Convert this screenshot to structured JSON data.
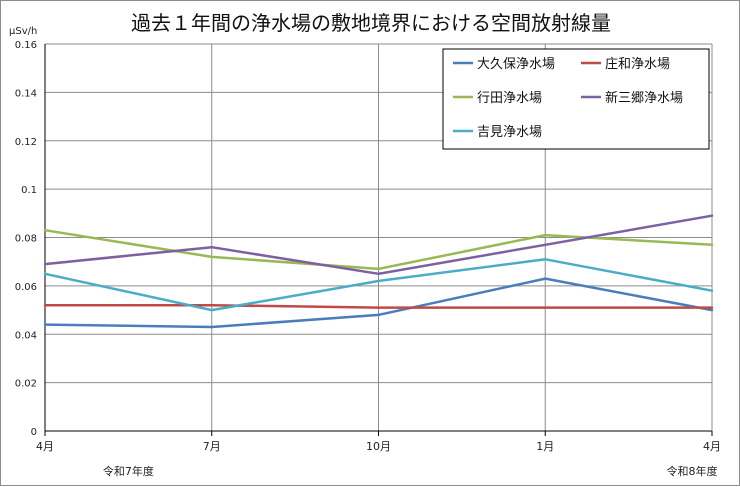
{
  "chart_data": {
    "type": "line",
    "title": "過去１年間の浄水場の敷地境界における空間放射線量",
    "ylabel": "μSv/h",
    "ylim": [
      0,
      0.16
    ],
    "yticks": [
      "0",
      "0.02",
      "0.04",
      "0.06",
      "0.08",
      "0.1",
      "0.12",
      "0.14",
      "0.16"
    ],
    "categories": [
      "4月",
      "7月",
      "10月",
      "1月",
      "4月"
    ],
    "year_labels": [
      "令和7年度",
      "令和8年度"
    ],
    "grid": true,
    "legend_position": "top-right",
    "series": [
      {
        "name": "大久保浄水場",
        "color": "#4a7ebb",
        "values": [
          0.044,
          0.043,
          0.048,
          0.063,
          0.05
        ]
      },
      {
        "name": "庄和浄水場",
        "color": "#be4b48",
        "values": [
          0.052,
          0.052,
          0.051,
          0.051,
          0.051
        ]
      },
      {
        "name": "行田浄水場",
        "color": "#98b954",
        "values": [
          0.083,
          0.072,
          0.067,
          0.081,
          0.077
        ]
      },
      {
        "name": "新三郷浄水場",
        "color": "#7d60a0",
        "values": [
          0.069,
          0.076,
          0.065,
          0.077,
          0.089
        ]
      },
      {
        "name": "吉見浄水場",
        "color": "#4bacc6",
        "values": [
          0.065,
          0.05,
          0.062,
          0.071,
          0.058
        ]
      }
    ]
  }
}
